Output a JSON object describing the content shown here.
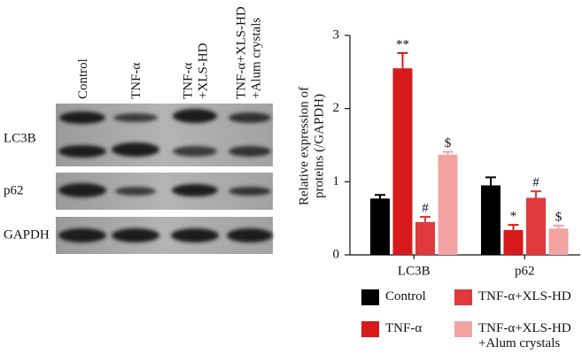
{
  "blot": {
    "lanes": [
      [
        "Control"
      ],
      [
        "TNF-α"
      ],
      [
        "TNF-α",
        "+XLS-HD"
      ],
      [
        "TNF-α+XLS-HD",
        "+Alum crystals"
      ]
    ],
    "rows": [
      "LC3B",
      "p62",
      "GAPDH"
    ]
  },
  "chart_data": {
    "type": "bar",
    "ylabel": "Relative expression of proteins (/GAPDH)",
    "categories": [
      "LC3B",
      "p62"
    ],
    "series": [
      {
        "name": "Control",
        "color": "#000000",
        "values": [
          0.77,
          0.95
        ],
        "errors": [
          0.05,
          0.11
        ]
      },
      {
        "name": "TNF-α",
        "color": "#d7191c",
        "values": [
          2.55,
          0.34
        ],
        "errors": [
          0.21,
          0.07
        ],
        "annotations": [
          "**",
          "*"
        ]
      },
      {
        "name": "TNF-α+XLS-HD",
        "color": "#e0393b",
        "values": [
          0.45,
          0.78
        ],
        "errors": [
          0.07,
          0.09
        ],
        "annotations": [
          "#",
          "#"
        ]
      },
      {
        "name": "TNF-α+XLS-HD +Alum crystals",
        "color": "#f4a3a3",
        "values": [
          1.37,
          0.36
        ],
        "errors": [
          0.04,
          0.04
        ],
        "annotations": [
          "$",
          "$"
        ]
      }
    ],
    "ylim": [
      0,
      3
    ],
    "yticks": [
      0,
      1,
      2,
      3
    ],
    "grid": false
  }
}
